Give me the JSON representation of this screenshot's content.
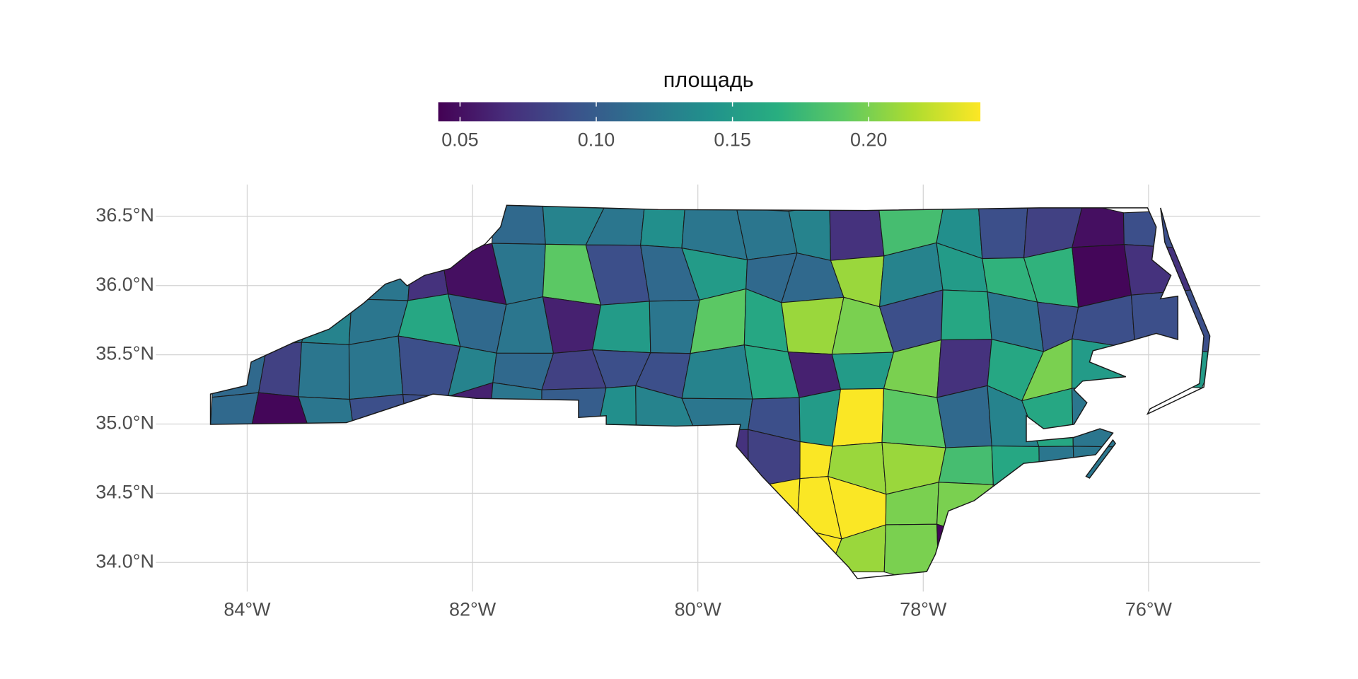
{
  "chart_data": {
    "type": "choropleth",
    "xlim": [
      -84.81,
      -75.01
    ],
    "ylim": [
      33.79,
      36.73
    ],
    "xticks": [
      {
        "value": -84,
        "label": "84°W"
      },
      {
        "value": -82,
        "label": "82°W"
      },
      {
        "value": -80,
        "label": "80°W"
      },
      {
        "value": -78,
        "label": "78°W"
      },
      {
        "value": -76,
        "label": "76°W"
      }
    ],
    "yticks": [
      {
        "value": 34.0,
        "label": "34.0°N"
      },
      {
        "value": 34.5,
        "label": "34.5°N"
      },
      {
        "value": 35.0,
        "label": "35.0°N"
      },
      {
        "value": 35.5,
        "label": "35.5°N"
      },
      {
        "value": 36.0,
        "label": "36.0°N"
      },
      {
        "value": 36.5,
        "label": "36.5°N"
      }
    ],
    "grid": true,
    "colorbar": {
      "title": "площадь",
      "lim": [
        0.042,
        0.241
      ],
      "ticks": [
        0.05,
        {
          "value": 0.1,
          "label": "0.10"
        },
        {
          "value": 0.15,
          "label": "0.15"
        },
        {
          "value": 0.2,
          "label": "0.20"
        }
      ],
      "palette": [
        "#440154",
        "#472d7b",
        "#3b528b",
        "#2c728e",
        "#21918c",
        "#28ae80",
        "#5ec962",
        "#addc30",
        "#fde725"
      ]
    },
    "values": [
      [
        0.11,
        0.13,
        0.12,
        0.14,
        0.12,
        0.12,
        0.13,
        0.07,
        0.18,
        0.14,
        0.09,
        0.08,
        0.05,
        0.09
      ],
      [
        0.12,
        0.07,
        0.05,
        0.12,
        0.19,
        0.09,
        0.11,
        0.15,
        0.11,
        0.11,
        0.21,
        0.13,
        0.15,
        0.17,
        0.17,
        0.045,
        0.07
      ],
      [
        0.12,
        0.13,
        0.12,
        0.16,
        0.11,
        0.12,
        0.06,
        0.15,
        0.12,
        0.19,
        0.16,
        0.21,
        0.2,
        0.09,
        0.16,
        0.12,
        0.09,
        0.09,
        0.09
      ],
      [
        0.11,
        0.08,
        0.12,
        0.12,
        0.09,
        0.13,
        0.11,
        0.08,
        0.09,
        0.09,
        0.13,
        0.16,
        0.06,
        0.15,
        0.2,
        0.07,
        0.16,
        0.2,
        0.15,
        0.15
      ],
      [
        0.11,
        0.045,
        0.12,
        0.09,
        0.09,
        0.06,
        0.12,
        0.1,
        0.14,
        0.13,
        0.12,
        0.09,
        0.15,
        0.24,
        0.19,
        0.11,
        0.13,
        0.16,
        0.12
      ],
      [
        0.07,
        0.08,
        0.24,
        0.21,
        0.21,
        0.18,
        0.16,
        0.12,
        0.12
      ],
      [
        0.24,
        0.24,
        0.24,
        0.2,
        0.2
      ],
      [
        0.24,
        0.21,
        0.2,
        0.045
      ]
    ]
  }
}
